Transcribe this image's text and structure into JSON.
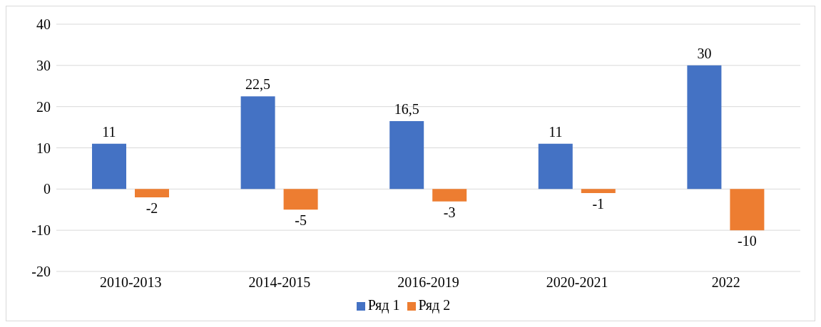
{
  "chart_data": {
    "type": "bar",
    "categories": [
      "2010-2013",
      "2014-2015",
      "2016-2019",
      "2020-2021",
      "2022"
    ],
    "series": [
      {
        "name": "Ряд 1",
        "color": "#4472c4",
        "values": [
          11,
          22.5,
          16.5,
          11,
          30
        ],
        "value_labels": [
          "11",
          "22,5",
          "16,5",
          "11",
          "30"
        ]
      },
      {
        "name": "Ряд 2",
        "color": "#ed7d31",
        "values": [
          -2,
          -5,
          -3,
          -1,
          -10
        ],
        "value_labels": [
          "-2",
          "-5",
          "-3",
          "-1",
          "-10"
        ]
      }
    ],
    "ylim": [
      -20,
      40
    ],
    "yticks": [
      -20,
      -10,
      0,
      10,
      20,
      30,
      40
    ],
    "grid": "y",
    "legend": "bottom"
  }
}
